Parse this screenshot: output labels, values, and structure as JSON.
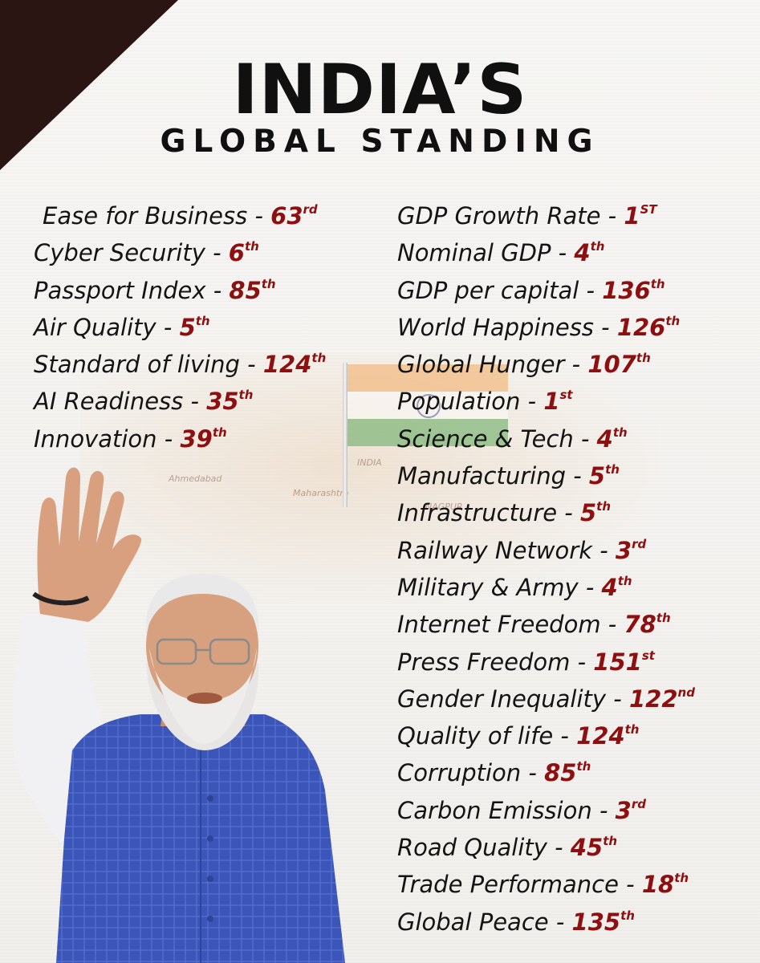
{
  "title": "INDIA’S",
  "subtitle": "GLOBAL STANDING",
  "rankings_left": [
    {
      "label": "Ease for Business - ",
      "rank": "63",
      "suffix": "rd"
    },
    {
      "label": "Cyber Security - ",
      "rank": "6",
      "suffix": "th"
    },
    {
      "label": "Passport Index - ",
      "rank": "85",
      "suffix": "th"
    },
    {
      "label": "Air Quality - ",
      "rank": "5",
      "suffix": "th"
    },
    {
      "label": "Standard of living - ",
      "rank": "124",
      "suffix": "th"
    },
    {
      "label": "AI Readiness - ",
      "rank": "35",
      "suffix": "th"
    },
    {
      "label": "Innovation - ",
      "rank": "39",
      "suffix": "th"
    }
  ],
  "rankings_right": [
    {
      "label": "GDP Growth Rate - ",
      "rank": "1",
      "suffix": "ST"
    },
    {
      "label": "Nominal GDP - ",
      "rank": "4",
      "suffix": "th"
    },
    {
      "label": "GDP per capital - ",
      "rank": "136",
      "suffix": "th"
    },
    {
      "label": "World Happiness - ",
      "rank": "126",
      "suffix": "th"
    },
    {
      "label": "Global Hunger - ",
      "rank": "107",
      "suffix": "th"
    },
    {
      "label": "Population - ",
      "rank": "1",
      "suffix": "st"
    },
    {
      "label": "Science & Tech - ",
      "rank": "4",
      "suffix": "th"
    },
    {
      "label": "Manufacturing - ",
      "rank": "5",
      "suffix": "th"
    },
    {
      "label": "Infrastructure - ",
      "rank": "5",
      "suffix": "th"
    },
    {
      "label": "Railway Network - ",
      "rank": "3",
      "suffix": "rd"
    },
    {
      "label": "Military & Army - ",
      "rank": "4",
      "suffix": "th"
    },
    {
      "label": "Internet Freedom - ",
      "rank": "78",
      "suffix": "th"
    },
    {
      "label": "Press Freedom - ",
      "rank": "151",
      "suffix": "st"
    },
    {
      "label": "Gender Inequality - ",
      "rank": "122",
      "suffix": "nd"
    },
    {
      "label": "Quality of life - ",
      "rank": "124",
      "suffix": "th"
    },
    {
      "label": "Corruption - ",
      "rank": "85",
      "suffix": "th"
    },
    {
      "label": "Carbon Emission - ",
      "rank": "3",
      "suffix": "rd"
    },
    {
      "label": "Road Quality - ",
      "rank": "45",
      "suffix": "th"
    },
    {
      "label": "Trade Performance - ",
      "rank": "18",
      "suffix": "th"
    },
    {
      "label": "Global Peace - ",
      "rank": "135",
      "suffix": "th"
    }
  ],
  "colors": {
    "corner": "#2a1512",
    "rank": "#8e0f0f",
    "text": "#141414",
    "vest": "#3b55b8"
  },
  "background": {
    "map_labels": [
      "Ahmedabad",
      "Maharashtra",
      "NAGPUR",
      "INDIA"
    ],
    "flag": "indian-flag",
    "figure": "waving-man-in-blue-vest"
  }
}
